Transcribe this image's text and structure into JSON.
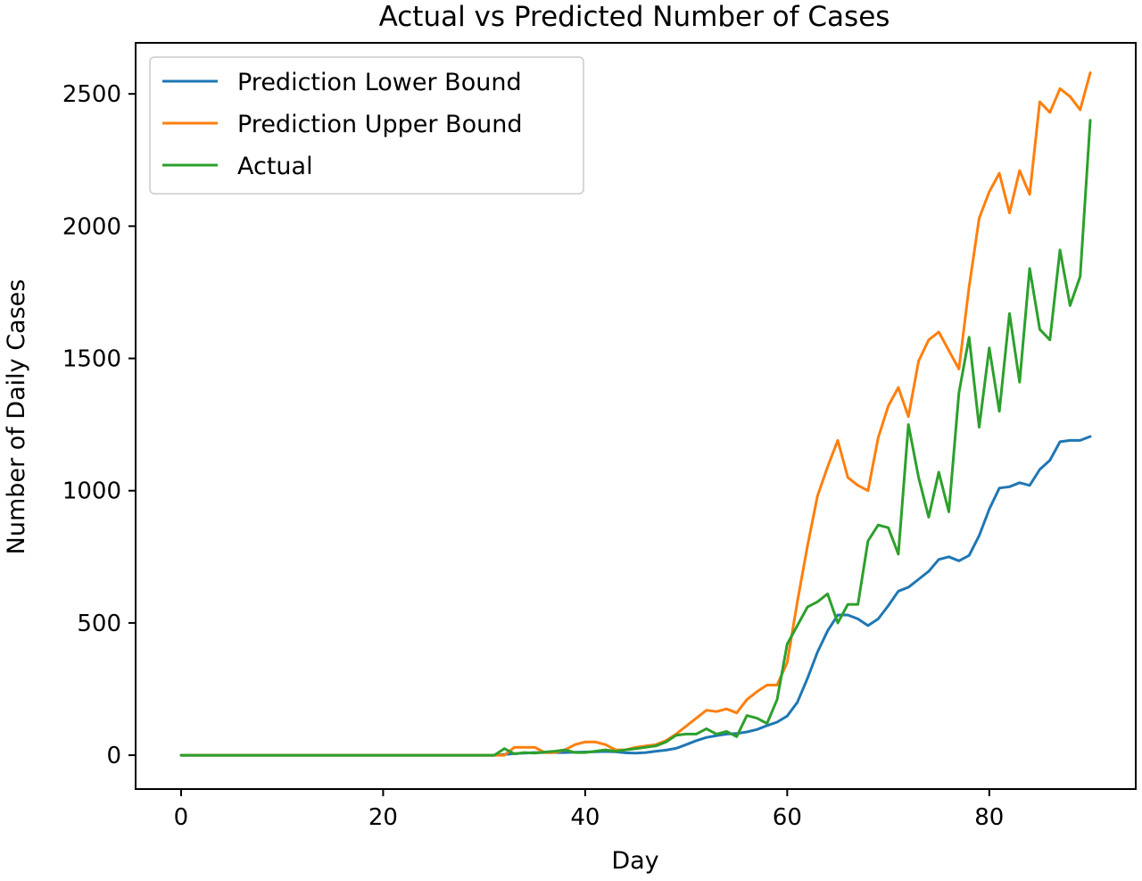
{
  "chart_data": {
    "type": "line",
    "title": "Actual vs Predicted Number of Cases",
    "xlabel": "Day",
    "ylabel": "Number of Daily Cases",
    "xlim": [
      -4.5,
      94.5
    ],
    "ylim": [
      -128,
      2693
    ],
    "xticks": [
      0,
      20,
      40,
      60,
      80
    ],
    "yticks": [
      0,
      500,
      1000,
      1500,
      2000,
      2500
    ],
    "grid": false,
    "legend_position": "upper left",
    "series": [
      {
        "name": "Prediction Lower Bound",
        "color": "#1f77b4",
        "x": [
          0,
          1,
          2,
          3,
          4,
          5,
          6,
          7,
          8,
          9,
          10,
          11,
          12,
          13,
          14,
          15,
          16,
          17,
          18,
          19,
          20,
          21,
          22,
          23,
          24,
          25,
          26,
          27,
          28,
          29,
          30,
          31,
          32,
          33,
          34,
          35,
          36,
          37,
          38,
          39,
          40,
          41,
          42,
          43,
          44,
          45,
          46,
          47,
          48,
          49,
          50,
          51,
          52,
          53,
          54,
          55,
          56,
          57,
          58,
          59,
          60,
          61,
          62,
          63,
          64,
          65,
          66,
          67,
          68,
          69,
          70,
          71,
          72,
          73,
          74,
          75,
          76,
          77,
          78,
          79,
          80,
          81,
          82,
          83,
          84,
          85,
          86,
          87,
          88,
          89,
          90
        ],
        "values": [
          0,
          0,
          0,
          0,
          0,
          0,
          0,
          0,
          0,
          0,
          0,
          0,
          0,
          0,
          0,
          0,
          0,
          0,
          0,
          0,
          0,
          0,
          0,
          0,
          0,
          0,
          0,
          0,
          0,
          0,
          0,
          0,
          3,
          6,
          8,
          10,
          10,
          10,
          10,
          11,
          12,
          13,
          14,
          13,
          9,
          8,
          10,
          15,
          19,
          26,
          40,
          55,
          67,
          74,
          80,
          82,
          88,
          97,
          112,
          125,
          148,
          200,
          290,
          390,
          470,
          530,
          530,
          515,
          490,
          515,
          565,
          620,
          635,
          665,
          695,
          740,
          750,
          735,
          755,
          830,
          930,
          1010,
          1015,
          1030,
          1020,
          1080,
          1115,
          1185,
          1190,
          1190,
          1205
        ]
      },
      {
        "name": "Prediction Upper Bound",
        "color": "#ff7f0e",
        "x": [
          0,
          1,
          2,
          3,
          4,
          5,
          6,
          7,
          8,
          9,
          10,
          11,
          12,
          13,
          14,
          15,
          16,
          17,
          18,
          19,
          20,
          21,
          22,
          23,
          24,
          25,
          26,
          27,
          28,
          29,
          30,
          31,
          32,
          33,
          34,
          35,
          36,
          37,
          38,
          39,
          40,
          41,
          42,
          43,
          44,
          45,
          46,
          47,
          48,
          49,
          50,
          51,
          52,
          53,
          54,
          55,
          56,
          57,
          58,
          59,
          60,
          61,
          62,
          63,
          64,
          65,
          66,
          67,
          68,
          69,
          70,
          71,
          72,
          73,
          74,
          75,
          76,
          77,
          78,
          79,
          80,
          81,
          82,
          83,
          84,
          85,
          86,
          87,
          88,
          89,
          90
        ],
        "values": [
          0,
          0,
          0,
          0,
          0,
          0,
          0,
          0,
          0,
          0,
          0,
          0,
          0,
          0,
          0,
          0,
          0,
          0,
          0,
          0,
          0,
          0,
          0,
          0,
          0,
          0,
          0,
          0,
          0,
          0,
          0,
          0,
          0,
          30,
          30,
          30,
          10,
          10,
          20,
          40,
          50,
          50,
          40,
          20,
          20,
          30,
          35,
          40,
          55,
          80,
          110,
          140,
          170,
          165,
          175,
          160,
          210,
          240,
          265,
          265,
          350,
          580,
          790,
          980,
          1090,
          1190,
          1050,
          1020,
          1000,
          1200,
          1320,
          1390,
          1280,
          1490,
          1570,
          1600,
          1530,
          1460,
          1770,
          2030,
          2130,
          2200,
          2050,
          2210,
          2120,
          2470,
          2430,
          2520,
          2490,
          2440,
          2580
        ]
      },
      {
        "name": "Actual",
        "color": "#2ca02c",
        "x": [
          0,
          1,
          2,
          3,
          4,
          5,
          6,
          7,
          8,
          9,
          10,
          11,
          12,
          13,
          14,
          15,
          16,
          17,
          18,
          19,
          20,
          21,
          22,
          23,
          24,
          25,
          26,
          27,
          28,
          29,
          30,
          31,
          32,
          33,
          34,
          35,
          36,
          37,
          38,
          39,
          40,
          41,
          42,
          43,
          44,
          45,
          46,
          47,
          48,
          49,
          50,
          51,
          52,
          53,
          54,
          55,
          56,
          57,
          58,
          59,
          60,
          61,
          62,
          63,
          64,
          65,
          66,
          67,
          68,
          69,
          70,
          71,
          72,
          73,
          74,
          75,
          76,
          77,
          78,
          79,
          80,
          81,
          82,
          83,
          84,
          85,
          86,
          87,
          88,
          89,
          90
        ],
        "values": [
          0,
          0,
          0,
          0,
          0,
          0,
          0,
          0,
          0,
          0,
          0,
          0,
          0,
          0,
          0,
          0,
          0,
          0,
          0,
          0,
          0,
          0,
          0,
          0,
          0,
          0,
          0,
          0,
          0,
          0,
          0,
          0,
          25,
          5,
          10,
          8,
          12,
          15,
          20,
          10,
          10,
          15,
          20,
          15,
          20,
          25,
          30,
          35,
          50,
          75,
          80,
          80,
          100,
          80,
          90,
          70,
          150,
          140,
          120,
          210,
          420,
          490,
          560,
          580,
          610,
          500,
          570,
          570,
          810,
          870,
          860,
          760,
          1250,
          1050,
          900,
          1070,
          920,
          1370,
          1580,
          1240,
          1540,
          1300,
          1670,
          1410,
          1840,
          1610,
          1570,
          1910,
          1700,
          1810,
          2400
        ]
      }
    ]
  }
}
